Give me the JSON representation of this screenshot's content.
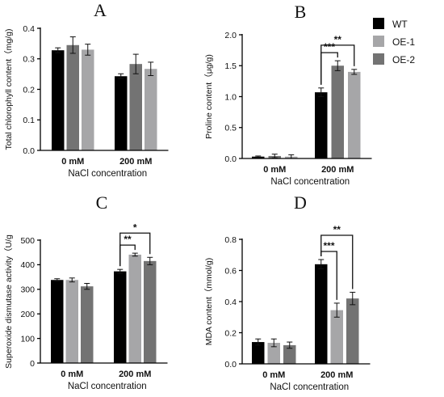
{
  "legend": {
    "entries": [
      {
        "name": "WT",
        "color": "#000000"
      },
      {
        "name": "OE-1",
        "color": "#a6a6a8"
      },
      {
        "name": "OE-2",
        "color": "#737373"
      }
    ]
  },
  "chart_data": [
    {
      "type": "bar",
      "panel": "A",
      "ylabel": "Total chlorophyll content（mg/g)",
      "xlabel": "NaCl concentration",
      "categories": [
        "0 mM",
        "200 mM"
      ],
      "ylim": [
        0,
        0.4
      ],
      "yticks": [
        "0.0",
        "0.1",
        "0.2",
        "0.3",
        "0.4"
      ],
      "series_colors": [
        "#000000",
        "#737373",
        "#a6a6a8"
      ],
      "series": [
        {
          "values": [
            0.328,
            0.243
          ],
          "errors": [
            0.008,
            0.008
          ]
        },
        {
          "values": [
            0.345,
            0.283
          ],
          "errors": [
            0.027,
            0.032
          ]
        },
        {
          "values": [
            0.33,
            0.267
          ],
          "errors": [
            0.018,
            0.022
          ]
        }
      ],
      "significance": []
    },
    {
      "type": "bar",
      "panel": "B",
      "ylabel": "Proline content（μg/g)",
      "xlabel": "NaCl concentration",
      "categories": [
        "0 mM",
        "200 mM"
      ],
      "ylim": [
        0,
        2.0
      ],
      "yticks": [
        "0.0",
        "0.5",
        "1.0",
        "1.5",
        "2.0"
      ],
      "series_colors": [
        "#000000",
        "#737373",
        "#a6a6a8"
      ],
      "series": [
        {
          "values": [
            0.03,
            1.07
          ],
          "errors": [
            0.01,
            0.07
          ]
        },
        {
          "values": [
            0.04,
            1.5
          ],
          "errors": [
            0.03,
            0.08
          ]
        },
        {
          "values": [
            0.03,
            1.4
          ],
          "errors": [
            0.03,
            0.04
          ]
        }
      ],
      "significance": [
        {
          "from": 0,
          "to": 1,
          "category": 1,
          "label": "***",
          "level": 1
        },
        {
          "from": 0,
          "to": 2,
          "category": 1,
          "label": "**",
          "level": 2
        }
      ]
    },
    {
      "type": "bar",
      "panel": "C",
      "ylabel": "Superoxide dismutase activity（U/g",
      "xlabel": "NaCl concentration",
      "categories": [
        "0 mM",
        "200 mM"
      ],
      "ylim": [
        0,
        500
      ],
      "yticks": [
        "0",
        "100",
        "200",
        "300",
        "400",
        "500"
      ],
      "series_colors": [
        "#000000",
        "#a6a6a8",
        "#737373"
      ],
      "series": [
        {
          "values": [
            338,
            373
          ],
          "errors": [
            5,
            8
          ]
        },
        {
          "values": [
            338,
            441
          ],
          "errors": [
            8,
            6
          ]
        },
        {
          "values": [
            312,
            415
          ],
          "errors": [
            12,
            15
          ]
        }
      ],
      "significance": [
        {
          "from": 0,
          "to": 1,
          "category": 1,
          "label": "**",
          "level": 1
        },
        {
          "from": 0,
          "to": 2,
          "category": 1,
          "label": "*",
          "level": 2
        }
      ]
    },
    {
      "type": "bar",
      "panel": "D",
      "ylabel": "MDA content（mmol/g)",
      "xlabel": "NaCl concentration",
      "categories": [
        "0 mM",
        "200 mM"
      ],
      "ylim": [
        0,
        0.8
      ],
      "yticks": [
        "0.0",
        "0.2",
        "0.4",
        "0.6",
        "0.8"
      ],
      "series_colors": [
        "#000000",
        "#a6a6a8",
        "#737373"
      ],
      "series": [
        {
          "values": [
            0.14,
            0.64
          ],
          "errors": [
            0.02,
            0.03
          ]
        },
        {
          "values": [
            0.135,
            0.345
          ],
          "errors": [
            0.025,
            0.045
          ]
        },
        {
          "values": [
            0.12,
            0.42
          ],
          "errors": [
            0.02,
            0.04
          ]
        }
      ],
      "significance": [
        {
          "from": 0,
          "to": 1,
          "category": 1,
          "label": "***",
          "level": 1
        },
        {
          "from": 0,
          "to": 2,
          "category": 1,
          "label": "**",
          "level": 2
        }
      ]
    }
  ]
}
